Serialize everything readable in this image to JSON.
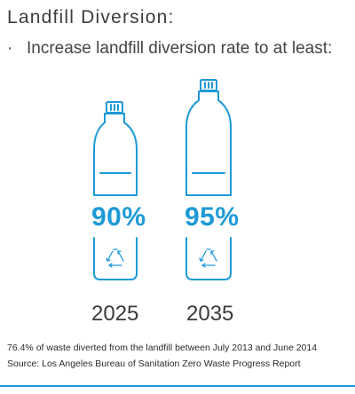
{
  "header": {
    "title": "Landfill Diversion:",
    "bullet": "·",
    "subtitle": "Increase landfill diversion rate to at least:"
  },
  "targets": [
    {
      "percent": "90%",
      "year": "2025",
      "icon": "bottle-icon"
    },
    {
      "percent": "95%",
      "year": "2035",
      "icon": "bottle-icon"
    }
  ],
  "recycle_icon": "recycle-icon",
  "footer": {
    "note": "76.4% of waste diverted from the landfill between July 2013 and June 2014",
    "source": "Source: Los Angeles Bureau of Sanitation Zero Waste Progress Report"
  },
  "colors": {
    "accent": "#1e9ad6",
    "text": "#3f3f3f"
  }
}
